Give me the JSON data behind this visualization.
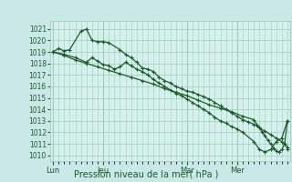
{
  "background_color": "#cbe8e8",
  "plot_bg_color": "#d6f0ee",
  "grid_color": "#a0ccbb",
  "line_color": "#1a5c28",
  "title": "Pression niveau de la mer( hPa )",
  "ylabel_ticks": [
    1010,
    1011,
    1012,
    1013,
    1014,
    1015,
    1016,
    1017,
    1018,
    1019,
    1020,
    1021
  ],
  "ylim": [
    1009.5,
    1021.7
  ],
  "xtick_labels": [
    "Lun",
    "Jeu",
    "Mar",
    "Mer"
  ],
  "xtick_positions": [
    0,
    18,
    48,
    66
  ],
  "n_x": 84,
  "xlim": [
    -1,
    85
  ],
  "series1": [
    1019.0,
    1019.3,
    1019.1,
    1019.2,
    1020.8,
    1021.0,
    1020.0,
    1019.9,
    1019.9,
    1019.8,
    1019.2,
    1018.8,
    1018.5,
    1018.1,
    1017.6,
    1017.5,
    1017.3,
    1016.8,
    1016.5,
    1016.3,
    1016.0,
    1015.8,
    1015.6,
    1015.5,
    1015.3,
    1015.1,
    1014.9,
    1014.6,
    1014.3,
    1014.0,
    1013.7,
    1013.4,
    1013.1,
    1012.9,
    1012.7,
    1012.4,
    1012.1,
    1011.8,
    1011.5,
    1011.2,
    1011.0,
    1010.7,
    1010.5
  ],
  "series1_x": [
    0,
    2,
    4,
    6,
    10,
    12,
    14,
    16,
    18,
    20,
    24,
    26,
    28,
    30,
    32,
    34,
    36,
    38,
    40,
    42,
    44,
    46,
    48,
    50,
    52,
    54,
    56,
    58,
    60,
    62,
    64,
    66,
    68,
    70,
    72,
    74,
    76,
    78,
    80,
    82,
    83,
    84,
    84
  ],
  "series2": [
    1019.0,
    1018.8,
    1018.5,
    1018.1,
    1018.5,
    1018.2,
    1017.9,
    1017.8,
    1017.5,
    1017.7,
    1018.1,
    1017.8,
    1017.5,
    1017.3,
    1017.0,
    1016.6,
    1016.3,
    1016.0,
    1015.7,
    1015.4,
    1015.2,
    1014.9,
    1014.6,
    1014.3,
    1014.0,
    1013.7,
    1013.3,
    1013.0,
    1012.8,
    1012.5,
    1012.3,
    1012.0,
    1011.2,
    1010.5,
    1010.3,
    1010.5,
    1011.2,
    1011.5,
    1013.0
  ],
  "series2_x": [
    0,
    4,
    8,
    12,
    14,
    16,
    18,
    20,
    22,
    24,
    26,
    28,
    30,
    32,
    34,
    36,
    38,
    40,
    42,
    44,
    46,
    48,
    50,
    52,
    54,
    56,
    58,
    60,
    62,
    64,
    66,
    68,
    72,
    74,
    76,
    78,
    80,
    82,
    84
  ],
  "series3": [
    1019.0,
    1018.7,
    1018.3,
    1018.0,
    1017.7,
    1017.4,
    1017.1,
    1016.8,
    1016.5,
    1016.2,
    1015.8,
    1015.5,
    1015.2,
    1014.8,
    1014.4,
    1014.1,
    1013.8,
    1013.4,
    1013.1,
    1012.7,
    1012.4,
    1012.0,
    1011.7,
    1011.3,
    1011.0,
    1010.6,
    1010.4,
    1010.3,
    1010.5,
    1011.0,
    1013.0
  ],
  "series3_x": [
    0,
    4,
    8,
    12,
    16,
    20,
    24,
    28,
    32,
    36,
    40,
    44,
    48,
    52,
    56,
    60,
    64,
    68,
    72,
    73,
    74,
    75,
    76,
    77,
    78,
    79,
    80,
    81,
    82,
    83,
    84
  ],
  "vlines_x": [
    0,
    18,
    48,
    66
  ],
  "marker": "+"
}
